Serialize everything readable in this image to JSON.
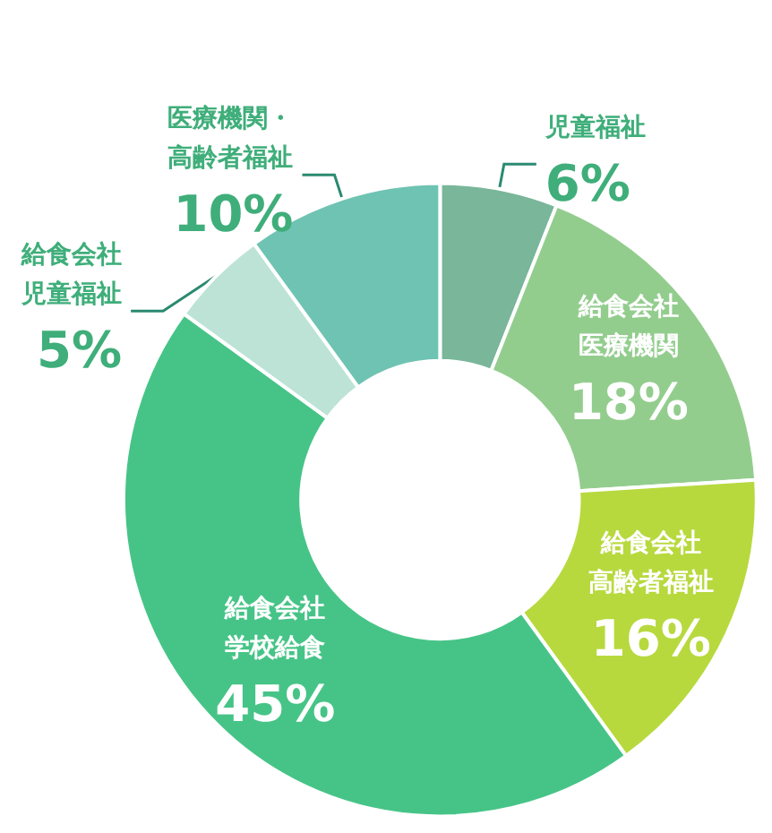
{
  "chart_data": {
    "type": "donut",
    "categories": [
      "児童福祉",
      "給食会社医療機関",
      "給食会社高齢者福祉",
      "給食会社学校給食",
      "給食会社児童福祉",
      "医療機関・高齢者福祉"
    ],
    "values": [
      6,
      18,
      16,
      45,
      5,
      10
    ],
    "value_labels": [
      "6%",
      "18%",
      "16%",
      "45%",
      "5%",
      "10%"
    ],
    "colors": [
      "#79b69a",
      "#93cd8e",
      "#b7d93e",
      "#46c487",
      "#bce3d6",
      "#6fc3b2"
    ],
    "legend": false
  }
}
